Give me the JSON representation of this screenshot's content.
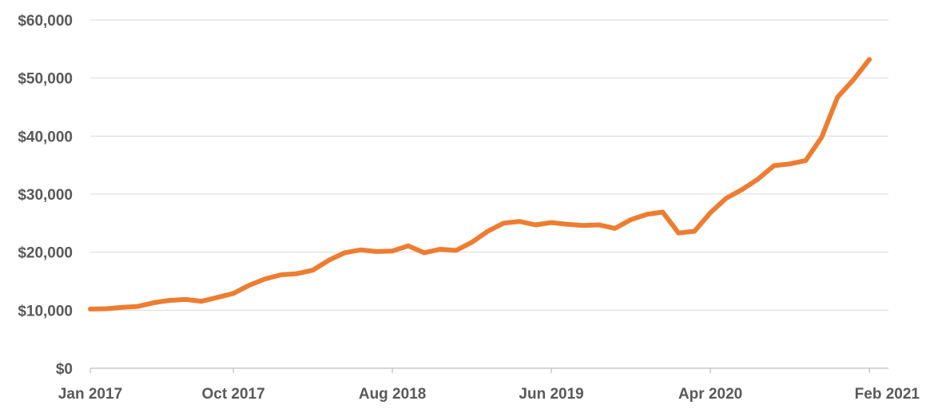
{
  "chart_data": {
    "type": "line",
    "title": "",
    "xlabel": "",
    "ylabel": "",
    "ylim": [
      0,
      60000
    ],
    "y_ticks": [
      0,
      10000,
      20000,
      30000,
      40000,
      50000,
      60000
    ],
    "y_tick_labels": [
      "$0",
      "$10,000",
      "$20,000",
      "$30,000",
      "$40,000",
      "$50,000",
      "$60,000"
    ],
    "x_tick_labels": [
      "Jan 2017",
      "Oct 2017",
      "Aug 2018",
      "Jun 2019",
      "Apr 2020",
      "Feb 2021"
    ],
    "x_tick_positions": [
      "2017-01",
      "2017-10",
      "2018-08",
      "2019-06",
      "2020-04",
      "2021-02"
    ],
    "grid": true,
    "legend": "none",
    "color": "#ed7d31",
    "x": [
      "2017-01",
      "2017-02",
      "2017-03",
      "2017-04",
      "2017-05",
      "2017-06",
      "2017-07",
      "2017-08",
      "2017-09",
      "2017-10",
      "2017-11",
      "2017-12",
      "2018-01",
      "2018-02",
      "2018-03",
      "2018-04",
      "2018-05",
      "2018-06",
      "2018-07",
      "2018-08",
      "2018-09",
      "2018-10",
      "2018-11",
      "2018-12",
      "2019-01",
      "2019-02",
      "2019-03",
      "2019-04",
      "2019-05",
      "2019-06",
      "2019-07",
      "2019-08",
      "2019-09",
      "2019-10",
      "2019-11",
      "2019-12",
      "2020-01",
      "2020-02",
      "2020-03",
      "2020-04",
      "2020-05",
      "2020-06",
      "2020-07",
      "2020-08",
      "2020-09",
      "2020-10",
      "2020-11",
      "2020-12",
      "2021-01",
      "2021-02"
    ],
    "series": [
      {
        "values": [
          10200,
          10250,
          10500,
          10650,
          11300,
          11700,
          11850,
          11550,
          12200,
          12900,
          14300,
          15400,
          16100,
          16300,
          16900,
          18600,
          19900,
          20400,
          20100,
          20200,
          21100,
          19900,
          20500,
          20300,
          21700,
          23600,
          25000,
          25300,
          24700,
          25100,
          24800,
          24600,
          24700,
          24100,
          25600,
          26500,
          26900,
          23300,
          23600,
          26800,
          29300,
          30800,
          32600,
          34900,
          35200,
          35800,
          39800,
          46700,
          49700,
          53200
        ]
      }
    ]
  }
}
